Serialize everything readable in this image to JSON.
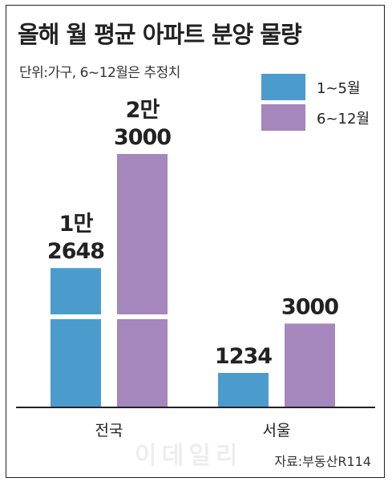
{
  "title": "올해 월 평균 아파트 분양 물량",
  "subtitle": "단위:가구, 6~12월은 추정치",
  "source": "자료:부동산R114",
  "watermark": "이데일리",
  "colors": {
    "series1": "#4b9ccd",
    "series2": "#a586bd",
    "axis": "#222222"
  },
  "chart_data": {
    "type": "bar",
    "title": "올해 월 평균 아파트 분양 물량",
    "subtitle": "단위:가구, 6~12월은 추정치",
    "categories": [
      "전국",
      "서울"
    ],
    "series": [
      {
        "name": "1~5월",
        "values": [
          12648,
          1234
        ],
        "labels": [
          "1만\n2648",
          "1234"
        ]
      },
      {
        "name": "6~12월",
        "values": [
          23000,
          3000
        ],
        "labels": [
          "2만\n3000",
          "3000"
        ]
      }
    ],
    "axis_break_category": "전국",
    "legend_position": "top-right",
    "grid": false
  }
}
